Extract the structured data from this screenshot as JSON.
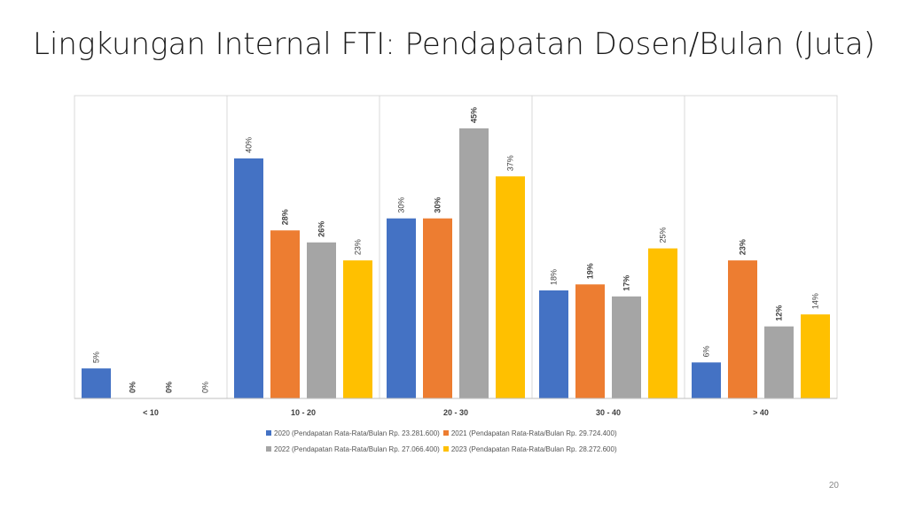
{
  "slide": {
    "title": "Lingkungan Internal FTI: Pendapatan Dosen/Bulan (Juta)",
    "page_number": "20"
  },
  "chart_data": {
    "type": "bar",
    "categories": [
      "< 10",
      "10 - 20",
      "20 - 30",
      "30 - 40",
      "> 40"
    ],
    "series": [
      {
        "name": "2020 (Pendapatan Rata-Rata/Bulan Rp. 23.281.600)",
        "color": "#4472C4",
        "values": [
          5,
          40,
          30,
          18,
          6
        ],
        "labels": [
          "5%",
          "40%",
          "30%",
          "18%",
          "6%"
        ],
        "bold": [
          false,
          false,
          false,
          false,
          false
        ]
      },
      {
        "name": "2021 (Pendapatan Rata-Rata/Bulan Rp. 29.724.400)",
        "color": "#ED7D31",
        "values": [
          0,
          28,
          30,
          19,
          23
        ],
        "labels": [
          "0%",
          "28%",
          "30%",
          "19%",
          "23%"
        ],
        "bold": [
          true,
          true,
          true,
          true,
          true
        ]
      },
      {
        "name": "2022 (Pendapatan Rata-Rata/Bulan Rp. 27.066.400)",
        "color": "#A5A5A5",
        "values": [
          0,
          26,
          45,
          17,
          12
        ],
        "labels": [
          "0%",
          "26%",
          "45%",
          "17%",
          "12%"
        ],
        "bold": [
          true,
          true,
          true,
          true,
          true
        ]
      },
      {
        "name": "2023 (Pendapatan Rata-Rata/Bulan Rp. 28.272.600)",
        "color": "#FFC000",
        "values": [
          0,
          23,
          37,
          25,
          14
        ],
        "labels": [
          "0%",
          "23%",
          "37%",
          "25%",
          "14%"
        ],
        "bold": [
          false,
          false,
          false,
          false,
          false
        ]
      }
    ],
    "ylim": [
      0,
      50
    ],
    "grid": false,
    "legend_position": "bottom"
  }
}
